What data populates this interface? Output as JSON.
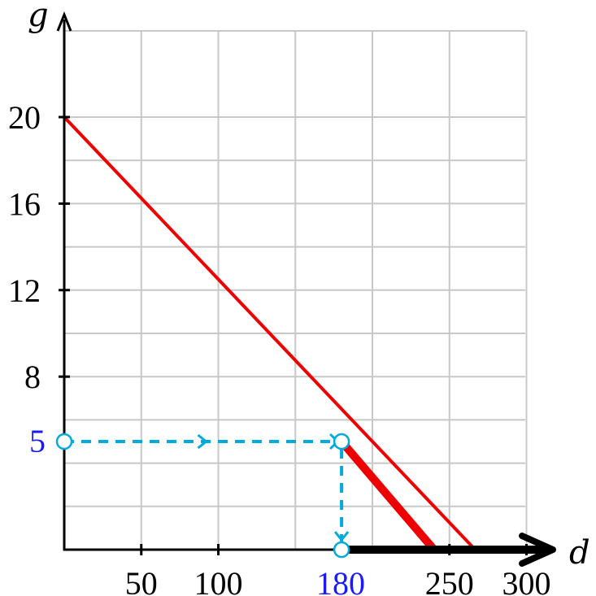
{
  "chart_data": {
    "type": "line",
    "xlabel": "d",
    "ylabel": "g",
    "xlim": [
      0,
      300
    ],
    "ylim": [
      0,
      22
    ],
    "grid": true,
    "x_ticks": [
      50,
      100,
      250,
      300
    ],
    "y_ticks": [
      8,
      12,
      16,
      20
    ],
    "x_grid_step": 50,
    "y_grid_step": 2,
    "highlight_x_label": "180",
    "highlight_y_label": "5",
    "series": [
      {
        "points": [
          [
            0,
            20
          ],
          [
            266.7,
            0
          ]
        ],
        "color": "#ee0000"
      },
      {
        "points": [
          [
            180,
            5
          ],
          [
            240,
            0
          ]
        ],
        "color": "#ee0000",
        "emphasis": "thick"
      }
    ],
    "domain_segment": {
      "from": 180,
      "to": 300,
      "color": "#000000"
    },
    "guide": {
      "points": [
        [
          0,
          5
        ],
        [
          180,
          5
        ],
        [
          180,
          0
        ]
      ],
      "color": "#00aadd",
      "style": "dashed"
    },
    "colors": {
      "grid": "#c8c8c8",
      "axis": "#000000",
      "line": "#ee0000",
      "guide": "#00aadd",
      "highlight_text": "#1a1aff"
    }
  }
}
